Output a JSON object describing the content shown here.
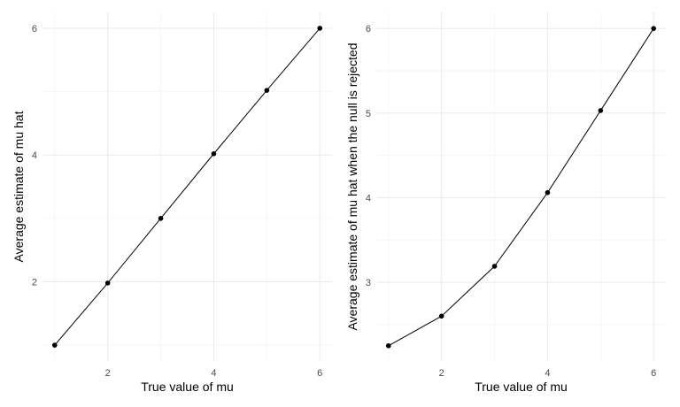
{
  "chart_data": [
    {
      "type": "line",
      "title": "",
      "xlabel": "True value of mu",
      "ylabel": "Average estimate of mu hat",
      "x": [
        1,
        2,
        3,
        4,
        5,
        6
      ],
      "series": [
        {
          "values": [
            1.0,
            1.98,
            3.0,
            4.02,
            5.02,
            6.0
          ]
        }
      ],
      "xlim": [
        0.77,
        6.23
      ],
      "ylim": [
        0.75,
        6.25
      ],
      "xticks": [
        2,
        4,
        6
      ],
      "yticks": [
        2,
        4,
        6
      ],
      "grid": true,
      "color": "#000000"
    },
    {
      "type": "line",
      "title": "",
      "xlabel": "True value of mu",
      "ylabel": "Average estimate of mu hat when the null is rejected",
      "x": [
        1,
        2,
        3,
        4,
        5,
        6
      ],
      "series": [
        {
          "values": [
            2.25,
            2.6,
            3.19,
            4.06,
            5.03,
            6.0
          ]
        }
      ],
      "xlim": [
        0.77,
        6.23
      ],
      "ylim": [
        2.07,
        6.19
      ],
      "xticks": [
        2,
        4,
        6
      ],
      "yticks": [
        3,
        4,
        5,
        6
      ],
      "grid": true,
      "color": "#000000"
    }
  ]
}
